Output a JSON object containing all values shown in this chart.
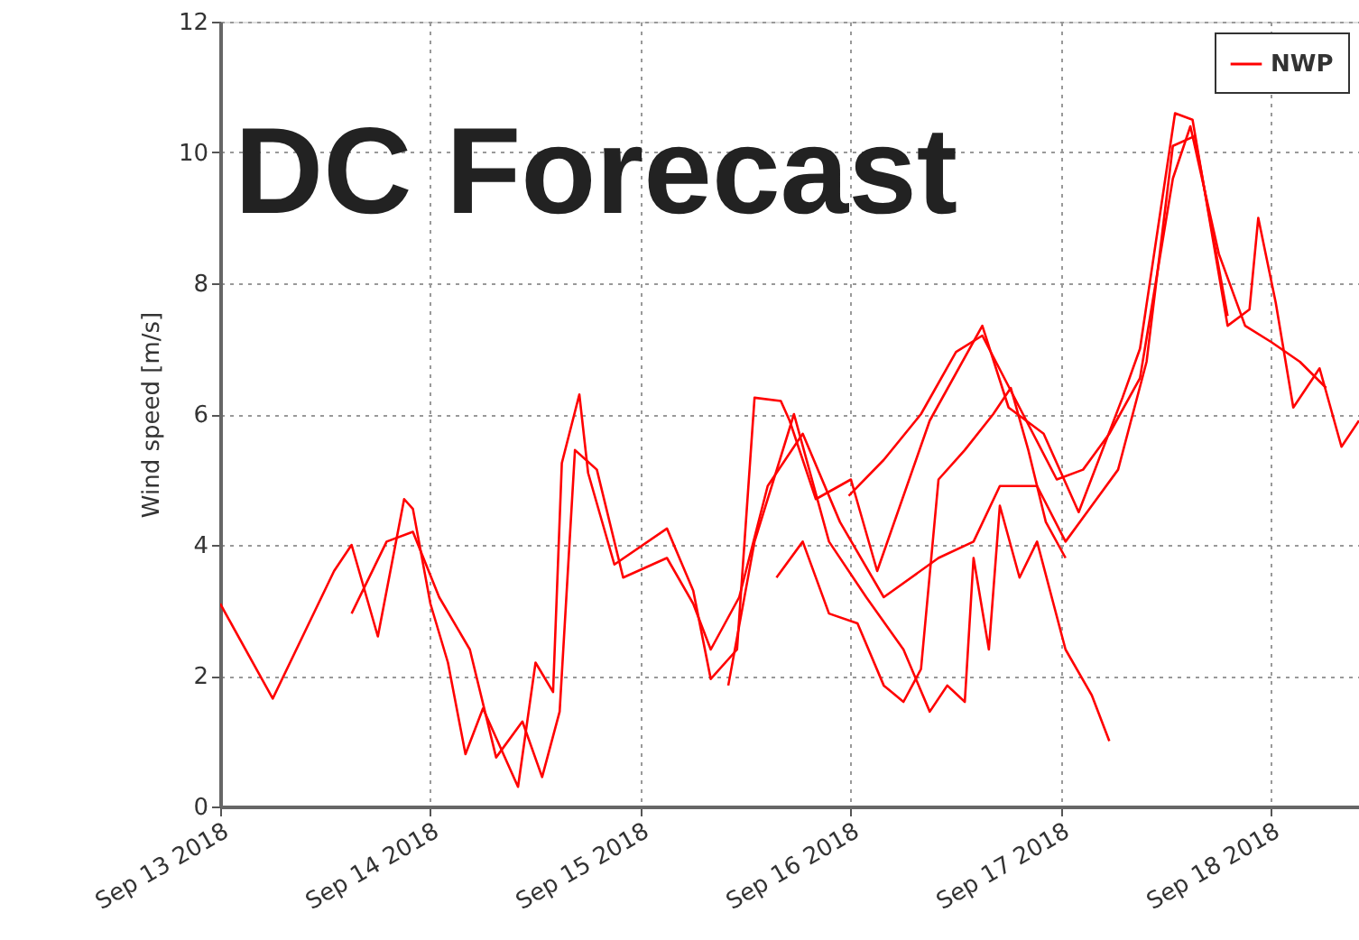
{
  "chart_data": {
    "type": "line",
    "title": "DC Forecast",
    "ylabel": "Wind speed [m/s]",
    "xlim": [
      "2018-09-13T00:00",
      "2018-09-18T10:00"
    ],
    "xticks": [
      {
        "value": "2018-09-13",
        "label": "Sep 13 2018"
      },
      {
        "value": "2018-09-14",
        "label": "Sep 14 2018"
      },
      {
        "value": "2018-09-15",
        "label": "Sep 15 2018"
      },
      {
        "value": "2018-09-16",
        "label": "Sep 16 2018"
      },
      {
        "value": "2018-09-17",
        "label": "Sep 17 2018"
      },
      {
        "value": "2018-09-18",
        "label": "Sep 18 2018"
      }
    ],
    "ylim": [
      0,
      12
    ],
    "yticks": [
      0,
      2,
      4,
      6,
      8,
      10,
      12
    ],
    "grid": true,
    "legend": "top right",
    "line_style": "solid",
    "marker": "none",
    "series": [
      {
        "name": "NWP",
        "color": "#ff0000",
        "x": [
          "2018-09-13T00:00",
          "2018-09-13T06:00",
          "2018-09-13T13:00",
          "2018-09-13T15:00",
          "2018-09-13T18:00",
          "2018-09-13T21:00",
          "2018-09-13T22:00",
          "2018-09-14T00:00",
          "2018-09-14T02:00",
          "2018-09-14T04:00",
          "2018-09-14T06:00",
          "2018-09-14T10:00",
          "2018-09-14T12:00",
          "2018-09-14T14:00",
          "2018-09-14T15:00",
          "2018-09-14T17:00",
          "2018-09-14T18:00",
          "2018-09-14T21:00",
          "2018-09-15T03:00",
          "2018-09-15T06:00",
          "2018-09-15T08:00",
          "2018-09-15T11:00",
          "2018-09-15T13:00",
          "2018-09-15T16:00",
          "2018-09-15T17:00",
          "2018-09-15T20:00",
          "2018-09-16T00:00",
          "2018-09-16T03:00",
          "2018-09-16T09:00",
          "2018-09-16T15:00",
          "2018-09-16T18:00",
          "2018-09-16T22:00",
          "2018-09-17T02:00",
          "2018-09-17T07:00",
          "2018-09-17T09:00",
          "2018-09-17T13:00",
          "2018-09-17T15:00",
          "2018-09-17T19:00",
          "2018-09-17T21:30",
          "2018-09-17T22:30",
          "2018-09-18T00:30",
          "2018-09-18T02:30",
          "2018-09-18T05:30",
          "2018-09-18T08:00",
          "2018-09-18T10:00"
        ],
        "values": [
          3.1,
          1.65,
          3.6,
          4.0,
          2.6,
          4.7,
          4.55,
          3.1,
          2.2,
          0.8,
          1.5,
          0.3,
          2.2,
          1.75,
          5.25,
          6.3,
          5.1,
          3.7,
          4.25,
          3.3,
          1.95,
          2.4,
          6.25,
          6.2,
          5.9,
          4.7,
          5.0,
          3.6,
          5.9,
          7.35,
          6.1,
          5.7,
          4.5,
          6.25,
          7.0,
          10.6,
          10.5,
          7.35,
          7.6,
          9.0,
          7.7,
          6.1,
          6.7,
          5.5,
          5.9
        ]
      },
      {
        "color": "#ff0000",
        "x": [
          "2018-09-15T10:00",
          "2018-09-15T13:00",
          "2018-09-15T17:30",
          "2018-09-15T21:30",
          "2018-09-16T01:45",
          "2018-09-16T06:00",
          "2018-09-16T09:00",
          "2018-09-16T11:00",
          "2018-09-16T13:00",
          "2018-09-16T14:00",
          "2018-09-16T15:45",
          "2018-09-16T17:00",
          "2018-09-16T19:15",
          "2018-09-16T21:15",
          "2018-09-17T00:30",
          "2018-09-17T03:30",
          "2018-09-17T05:30"
        ],
        "values": [
          1.85,
          4.05,
          6.0,
          4.05,
          3.2,
          2.4,
          1.45,
          1.85,
          1.6,
          3.8,
          2.4,
          4.6,
          3.5,
          4.05,
          2.4,
          1.7,
          1.0
        ]
      },
      {
        "color": "#ff0000",
        "x": [
          "2018-09-13T15:00",
          "2018-09-13T19:00",
          "2018-09-13T22:00",
          "2018-09-14T01:00",
          "2018-09-14T04:30",
          "2018-09-14T07:30",
          "2018-09-14T10:30",
          "2018-09-14T12:45",
          "2018-09-14T14:45",
          "2018-09-14T16:30",
          "2018-09-14T19:00",
          "2018-09-14T22:00",
          "2018-09-15T03:00",
          "2018-09-15T06:00",
          "2018-09-15T08:00",
          "2018-09-15T11:15",
          "2018-09-15T14:30",
          "2018-09-15T18:30",
          "2018-09-15T22:45",
          "2018-09-16T03:45",
          "2018-09-16T10:00",
          "2018-09-16T14:00",
          "2018-09-16T17:00",
          "2018-09-16T21:15",
          "2018-09-17T00:30",
          "2018-09-17T03:30",
          "2018-09-17T06:30",
          "2018-09-17T09:45",
          "2018-09-17T12:45",
          "2018-09-17T15:15",
          "2018-09-17T19:00"
        ],
        "values": [
          2.95,
          4.05,
          4.2,
          3.2,
          2.4,
          0.75,
          1.3,
          0.45,
          1.45,
          5.45,
          5.15,
          3.5,
          3.8,
          3.1,
          2.4,
          3.2,
          4.9,
          5.7,
          4.35,
          3.2,
          3.8,
          4.05,
          4.9,
          4.9,
          4.05,
          4.6,
          5.15,
          6.8,
          10.1,
          10.25,
          7.5
        ]
      },
      {
        "color": "#ff0000",
        "x": [
          "2018-09-15T23:45",
          "2018-09-16T03:45",
          "2018-09-16T08:00",
          "2018-09-16T12:00",
          "2018-09-16T15:00",
          "2018-09-16T19:15",
          "2018-09-16T23:30",
          "2018-09-17T02:30",
          "2018-09-17T05:30",
          "2018-09-17T09:00",
          "2018-09-17T12:45",
          "2018-09-17T14:45",
          "2018-09-17T18:00",
          "2018-09-17T21:00",
          "2018-09-18T00:00",
          "2018-09-18T03:15",
          "2018-09-18T06:15"
        ],
        "values": [
          4.75,
          5.3,
          6.0,
          6.95,
          7.2,
          6.1,
          5.0,
          5.15,
          5.7,
          6.55,
          9.6,
          10.4,
          8.45,
          7.35,
          7.1,
          6.8,
          6.4
        ]
      },
      {
        "color": "#ff0000",
        "x": [
          "2018-09-15T15:30",
          "2018-09-15T18:30",
          "2018-09-15T21:30",
          "2018-09-16T00:45",
          "2018-09-16T03:45",
          "2018-09-16T06:00",
          "2018-09-16T08:00",
          "2018-09-16T10:00",
          "2018-09-16T13:00",
          "2018-09-16T16:15",
          "2018-09-16T18:15",
          "2018-09-16T20:15",
          "2018-09-16T22:15",
          "2018-09-17T00:30"
        ],
        "values": [
          3.5,
          4.05,
          2.95,
          2.8,
          1.85,
          1.6,
          2.1,
          5.0,
          5.45,
          6.0,
          6.4,
          5.45,
          4.35,
          3.8
        ]
      }
    ]
  }
}
